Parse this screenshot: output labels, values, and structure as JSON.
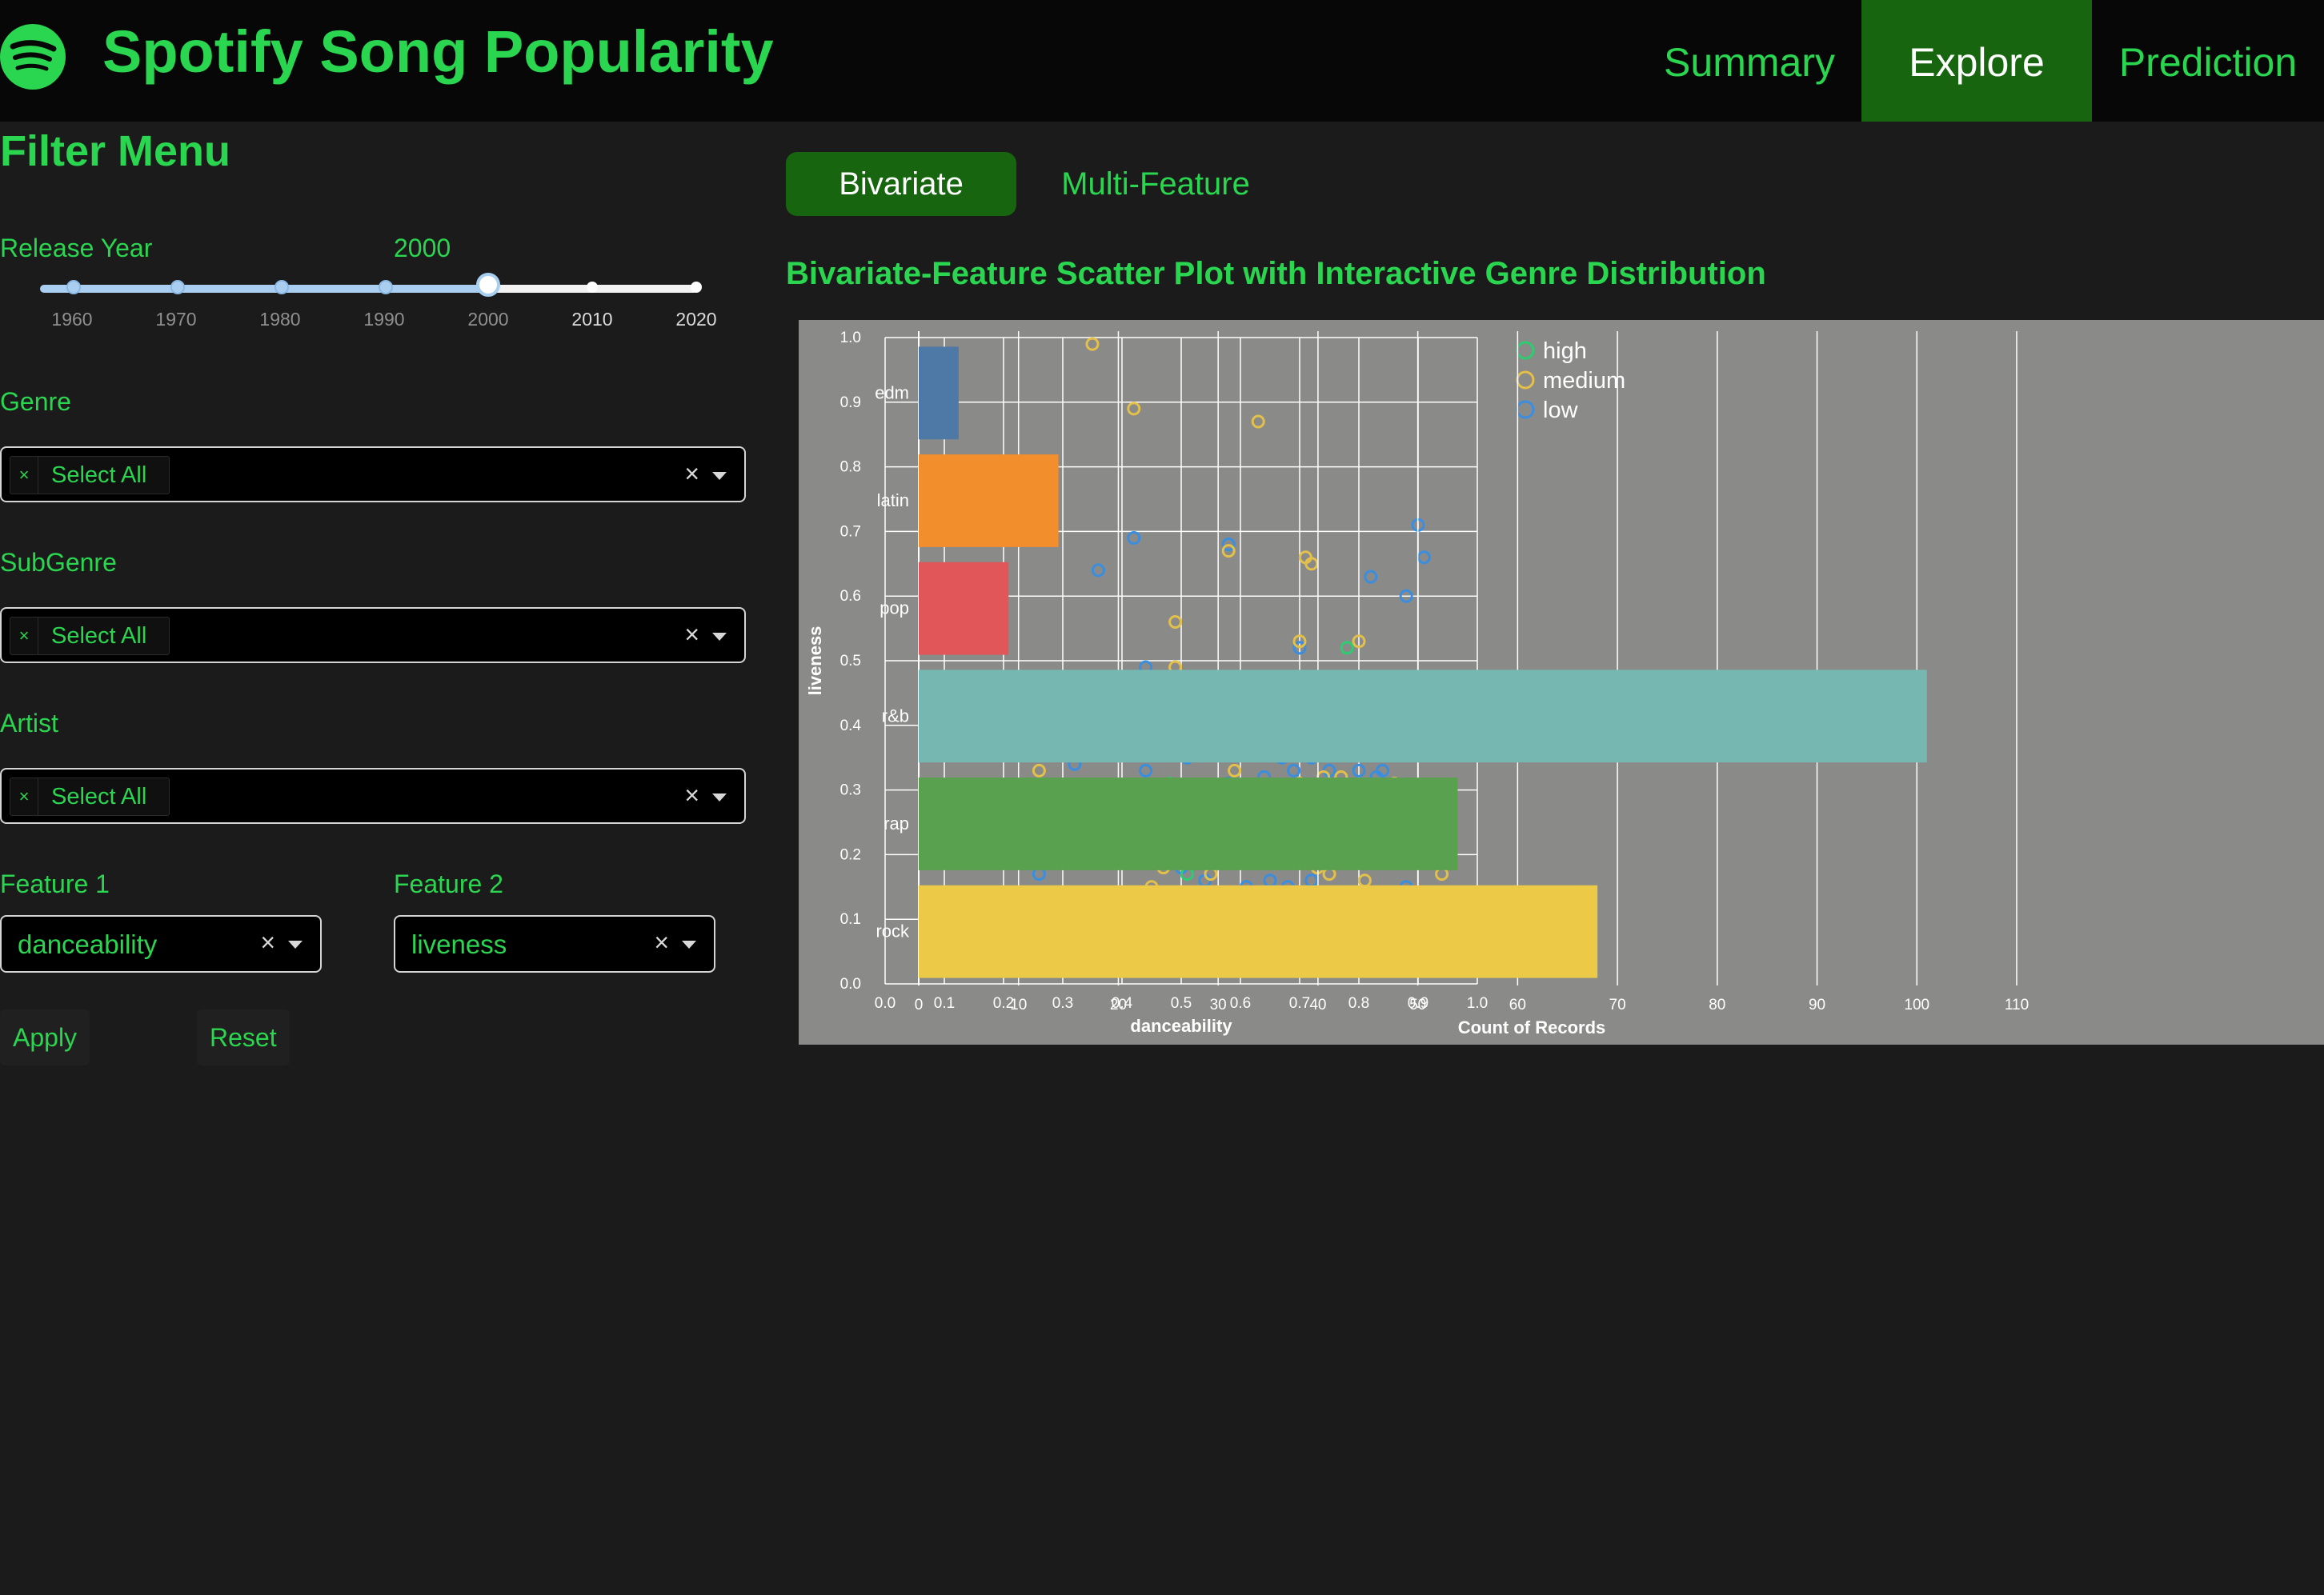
{
  "header": {
    "title": "Spotify Song Popularity",
    "nav": [
      "Summary",
      "Explore",
      "Prediction"
    ],
    "active_nav": "Explore"
  },
  "filter": {
    "title": "Filter Menu",
    "release_year": {
      "label": "Release Year",
      "value": "2000",
      "ticks": [
        "1960",
        "1970",
        "1980",
        "1990",
        "2000",
        "2010",
        "2020"
      ]
    },
    "genre": {
      "label": "Genre",
      "chip": "Select All",
      "chip_x": "×",
      "clear": "×"
    },
    "subgenre": {
      "label": "SubGenre",
      "chip": "Select All",
      "chip_x": "×",
      "clear": "×"
    },
    "artist": {
      "label": "Artist",
      "chip": "Select All",
      "chip_x": "×",
      "clear": "×"
    },
    "feature1": {
      "label": "Feature 1",
      "value": "danceability",
      "clear": "×"
    },
    "feature2": {
      "label": "Feature 2",
      "value": "liveness",
      "clear": "×"
    },
    "apply": "Apply",
    "reset": "Reset"
  },
  "tabs": {
    "items": [
      "Bivariate",
      "Multi-Feature"
    ],
    "active": "Bivariate"
  },
  "chart_title": "Bivariate-Feature Scatter Plot with Interactive Genre Distribution",
  "colors": {
    "accent": "#2ad64f",
    "header_bg": "#070707",
    "active_bg": "#17660f",
    "page_bg": "#1b1b1b",
    "panel_bg": "#8a8a88"
  },
  "chart_data": [
    {
      "type": "scatter",
      "xlabel": "danceability",
      "ylabel": "liveness",
      "xlim": [
        0.0,
        1.0
      ],
      "ylim": [
        0.0,
        1.0
      ],
      "xticks": [
        "0.0",
        "0.1",
        "0.2",
        "0.3",
        "0.4",
        "0.5",
        "0.6",
        "0.7",
        "0.8",
        "0.9",
        "1.0"
      ],
      "yticks": [
        "0.0",
        "0.1",
        "0.2",
        "0.3",
        "0.4",
        "0.5",
        "0.6",
        "0.7",
        "0.8",
        "0.9",
        "1.0"
      ],
      "grid": true,
      "legend_position": "top-right",
      "series": [
        {
          "name": "high",
          "color": "#2ecc71",
          "points": [
            [
              0.41,
              0.23
            ],
            [
              0.48,
              0.31
            ],
            [
              0.49,
              0.21
            ],
            [
              0.51,
              0.17
            ],
            [
              0.58,
              0.08
            ],
            [
              0.64,
              0.09
            ],
            [
              0.73,
              0.12
            ],
            [
              0.76,
              0.36
            ],
            [
              0.78,
              0.52
            ],
            [
              0.83,
              0.08
            ],
            [
              0.84,
              0.25
            ],
            [
              0.93,
              0.05
            ]
          ]
        },
        {
          "name": "medium",
          "color": "#e3c04a",
          "points": [
            [
              0.35,
              0.99
            ],
            [
              0.42,
              0.89
            ],
            [
              0.63,
              0.87
            ],
            [
              0.58,
              0.67
            ],
            [
              0.71,
              0.66
            ],
            [
              0.72,
              0.65
            ],
            [
              0.49,
              0.56
            ],
            [
              0.7,
              0.53
            ],
            [
              0.8,
              0.53
            ],
            [
              0.49,
              0.49
            ],
            [
              0.43,
              0.46
            ],
            [
              0.43,
              0.44
            ],
            [
              0.54,
              0.43
            ],
            [
              0.71,
              0.47
            ],
            [
              0.72,
              0.43
            ],
            [
              0.44,
              0.41
            ],
            [
              0.73,
              0.39
            ],
            [
              0.81,
              0.41
            ],
            [
              0.26,
              0.33
            ],
            [
              0.58,
              0.36
            ],
            [
              0.59,
              0.33
            ],
            [
              0.7,
              0.31
            ],
            [
              0.74,
              0.32
            ],
            [
              0.77,
              0.32
            ],
            [
              0.86,
              0.31
            ],
            [
              0.91,
              0.3
            ],
            [
              0.35,
              0.27
            ],
            [
              0.44,
              0.28
            ],
            [
              0.62,
              0.27
            ],
            [
              0.74,
              0.28
            ],
            [
              0.76,
              0.27
            ],
            [
              0.69,
              0.25
            ],
            [
              0.78,
              0.26
            ],
            [
              0.46,
              0.2
            ],
            [
              0.49,
              0.22
            ],
            [
              0.72,
              0.2
            ],
            [
              0.77,
              0.22
            ],
            [
              0.8,
              0.23
            ],
            [
              0.47,
              0.18
            ],
            [
              0.55,
              0.17
            ],
            [
              0.73,
              0.18
            ],
            [
              0.75,
              0.17
            ],
            [
              0.81,
              0.16
            ],
            [
              0.94,
              0.17
            ],
            [
              0.45,
              0.15
            ],
            [
              0.52,
              0.14
            ],
            [
              0.56,
              0.12
            ],
            [
              0.6,
              0.13
            ],
            [
              0.66,
              0.14
            ],
            [
              0.7,
              0.14
            ],
            [
              0.39,
              0.14
            ],
            [
              0.28,
              0.1
            ],
            [
              0.36,
              0.1
            ],
            [
              0.44,
              0.09
            ],
            [
              0.47,
              0.1
            ],
            [
              0.53,
              0.11
            ],
            [
              0.58,
              0.1
            ],
            [
              0.61,
              0.11
            ],
            [
              0.64,
              0.12
            ],
            [
              0.67,
              0.1
            ],
            [
              0.71,
              0.09
            ],
            [
              0.73,
              0.11
            ],
            [
              0.79,
              0.11
            ],
            [
              0.83,
              0.12
            ],
            [
              0.87,
              0.1
            ],
            [
              0.9,
              0.11
            ],
            [
              0.92,
              0.09
            ],
            [
              0.46,
              0.06
            ],
            [
              0.5,
              0.07
            ],
            [
              0.55,
              0.06
            ],
            [
              0.59,
              0.08
            ],
            [
              0.61,
              0.05
            ],
            [
              0.63,
              0.06
            ],
            [
              0.66,
              0.07
            ],
            [
              0.71,
              0.04
            ],
            [
              0.74,
              0.06
            ],
            [
              0.76,
              0.05
            ],
            [
              0.78,
              0.07
            ],
            [
              0.8,
              0.06
            ],
            [
              0.82,
              0.08
            ],
            [
              0.84,
              0.07
            ],
            [
              0.86,
              0.05
            ],
            [
              0.88,
              0.06
            ],
            [
              0.9,
              0.05
            ],
            [
              0.94,
              0.09
            ],
            [
              0.49,
              0.04
            ],
            [
              0.7,
              0.03
            ],
            [
              0.73,
              0.02
            ]
          ]
        },
        {
          "name": "low",
          "color": "#3a8ee0",
          "points": [
            [
              0.26,
              0.72
            ],
            [
              0.36,
              0.64
            ],
            [
              0.42,
              0.69
            ],
            [
              0.58,
              0.68
            ],
            [
              0.82,
              0.63
            ],
            [
              0.88,
              0.6
            ],
            [
              0.9,
              0.71
            ],
            [
              0.91,
              0.66
            ],
            [
              0.7,
              0.52
            ],
            [
              0.44,
              0.49
            ],
            [
              0.52,
              0.47
            ],
            [
              0.42,
              0.47
            ],
            [
              0.94,
              0.46
            ],
            [
              0.57,
              0.4
            ],
            [
              0.76,
              0.4
            ],
            [
              0.74,
              0.37
            ],
            [
              0.89,
              0.38
            ],
            [
              0.67,
              0.35
            ],
            [
              0.72,
              0.35
            ],
            [
              0.75,
              0.33
            ],
            [
              0.51,
              0.35
            ],
            [
              0.32,
              0.34
            ],
            [
              0.44,
              0.33
            ],
            [
              0.58,
              0.31
            ],
            [
              0.64,
              0.32
            ],
            [
              0.66,
              0.3
            ],
            [
              0.69,
              0.33
            ],
            [
              0.8,
              0.33
            ],
            [
              0.83,
              0.32
            ],
            [
              0.84,
              0.33
            ],
            [
              0.86,
              0.31
            ],
            [
              0.4,
              0.27
            ],
            [
              0.52,
              0.28
            ],
            [
              0.57,
              0.26
            ],
            [
              0.62,
              0.3
            ],
            [
              0.73,
              0.3
            ],
            [
              0.78,
              0.29
            ],
            [
              0.82,
              0.28
            ],
            [
              0.87,
              0.27
            ],
            [
              0.57,
              0.25
            ],
            [
              0.6,
              0.23
            ],
            [
              0.66,
              0.24
            ],
            [
              0.77,
              0.25
            ],
            [
              0.79,
              0.24
            ],
            [
              0.81,
              0.25
            ],
            [
              0.44,
              0.21
            ],
            [
              0.51,
              0.2
            ],
            [
              0.56,
              0.21
            ],
            [
              0.58,
              0.19
            ],
            [
              0.64,
              0.2
            ],
            [
              0.69,
              0.21
            ],
            [
              0.78,
              0.19
            ],
            [
              0.26,
              0.17
            ],
            [
              0.5,
              0.18
            ],
            [
              0.54,
              0.16
            ],
            [
              0.61,
              0.15
            ],
            [
              0.65,
              0.16
            ],
            [
              0.68,
              0.15
            ],
            [
              0.72,
              0.16
            ],
            [
              0.86,
              0.14
            ],
            [
              0.88,
              0.15
            ],
            [
              0.91,
              0.14
            ],
            [
              0.93,
              0.14
            ],
            [
              0.62,
              0.13
            ],
            [
              0.66,
              0.12
            ],
            [
              0.72,
              0.12
            ],
            [
              0.77,
              0.13
            ],
            [
              0.8,
              0.14
            ],
            [
              0.82,
              0.11
            ],
            [
              0.84,
              0.12
            ],
            [
              0.92,
              0.1
            ],
            [
              0.26,
              0.09
            ],
            [
              0.54,
              0.09
            ],
            [
              0.56,
              0.08
            ],
            [
              0.6,
              0.09
            ],
            [
              0.63,
              0.08
            ],
            [
              0.65,
              0.1
            ],
            [
              0.68,
              0.1
            ],
            [
              0.73,
              0.08
            ],
            [
              0.76,
              0.07
            ],
            [
              0.78,
              0.09
            ],
            [
              0.85,
              0.1
            ],
            [
              0.92,
              0.08
            ],
            [
              0.33,
              0.06
            ],
            [
              0.43,
              0.07
            ],
            [
              0.47,
              0.09
            ],
            [
              0.5,
              0.06
            ],
            [
              0.57,
              0.05
            ],
            [
              0.59,
              0.06
            ],
            [
              0.63,
              0.05
            ],
            [
              0.67,
              0.04
            ],
            [
              0.72,
              0.06
            ],
            [
              0.74,
              0.05
            ],
            [
              0.81,
              0.06
            ],
            [
              0.84,
              0.05
            ],
            [
              0.91,
              0.07
            ],
            [
              0.95,
              0.05
            ],
            [
              0.45,
              0.05
            ],
            [
              0.56,
              0.04
            ],
            [
              0.7,
              0.05
            ],
            [
              0.79,
              0.04
            ],
            [
              0.6,
              0.1
            ],
            [
              0.62,
              0.07
            ]
          ]
        }
      ]
    },
    {
      "type": "bar",
      "orientation": "horizontal",
      "categories": [
        "edm",
        "latin",
        "pop",
        "r&b",
        "rap",
        "rock"
      ],
      "values": [
        4,
        14,
        9,
        101,
        54,
        68
      ],
      "colors": [
        "#4e79a7",
        "#f28e2b",
        "#e15759",
        "#76b7b2",
        "#59a14f",
        "#edc948"
      ],
      "xlabel": "Count of Records",
      "xticks": [
        "0",
        "10",
        "20",
        "30",
        "40",
        "50",
        "60",
        "70",
        "80",
        "90",
        "100",
        "110"
      ],
      "xlim": [
        0,
        110
      ],
      "grid": true
    }
  ]
}
